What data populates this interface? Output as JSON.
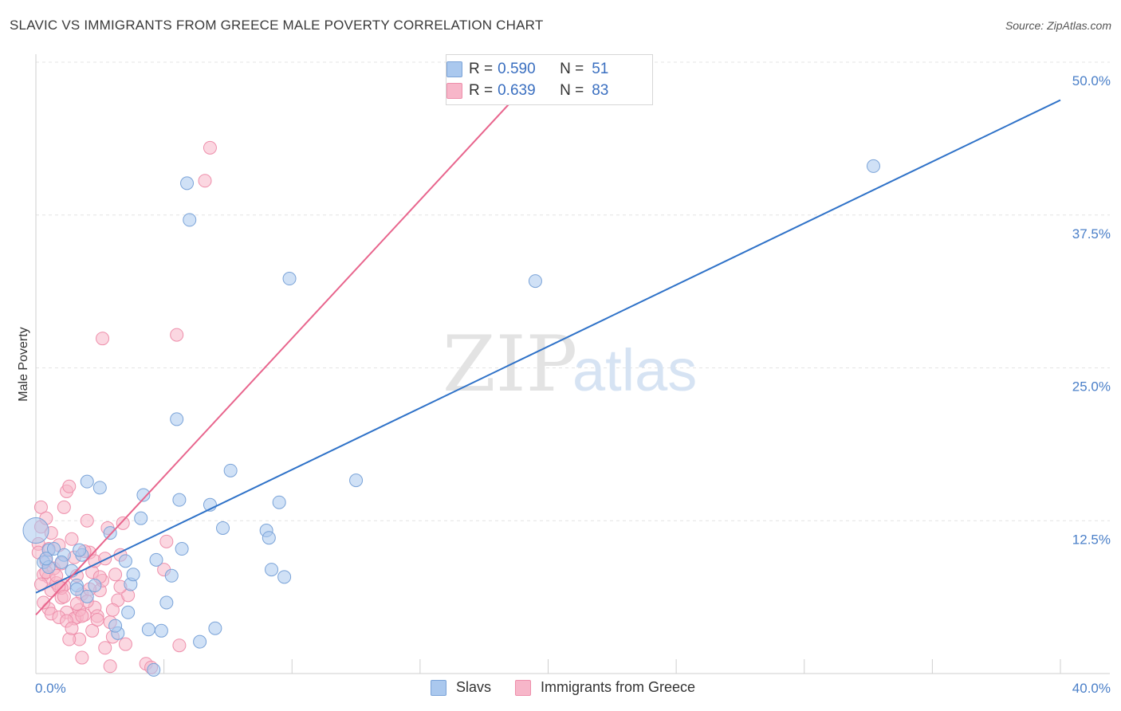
{
  "title": "SLAVIC VS IMMIGRANTS FROM GREECE MALE POVERTY CORRELATION CHART",
  "source": "Source: ZipAtlas.com",
  "watermark": {
    "zip": "ZIP",
    "atlas": "atlas"
  },
  "legend": {
    "rows": [
      {
        "r_label": "R =",
        "r_value": "0.590",
        "n_label": "N =",
        "n_value": "51"
      },
      {
        "r_label": "R =",
        "r_value": "0.639",
        "n_label": "N =",
        "n_value": "83"
      }
    ]
  },
  "bottom_legend": {
    "series1": "Slavs",
    "series2": "Immigrants from Greece"
  },
  "colors": {
    "slavs_fill": "#aac8ee",
    "slavs_stroke": "#7aa3d8",
    "slavs_line": "#2f72c8",
    "greece_fill": "#f7b6c9",
    "greece_stroke": "#ee8fab",
    "greece_line": "#e8658d",
    "axis_text": "#4a7fc8",
    "grid": "#e4e4e4"
  },
  "chart_data": {
    "type": "scatter",
    "xlabel": "",
    "ylabel": "Male Poverty",
    "xlim": [
      0,
      40
    ],
    "ylim": [
      0,
      50
    ],
    "x_tick_labels": [
      "0.0%",
      "40.0%"
    ],
    "y_ticks": [
      12.5,
      25.0,
      37.5,
      50.0
    ],
    "y_tick_labels": [
      "12.5%",
      "25.0%",
      "37.5%",
      "50.0%"
    ],
    "series": [
      {
        "name": "Slavs",
        "trend": {
          "x": [
            0,
            40
          ],
          "y": [
            6.6,
            46.9
          ]
        },
        "points": [
          [
            0.0,
            11.7
          ],
          [
            0.5,
            10.1
          ],
          [
            0.7,
            10.2
          ],
          [
            0.3,
            9.1
          ],
          [
            0.5,
            8.7
          ],
          [
            1.1,
            9.7
          ],
          [
            1.0,
            9.1
          ],
          [
            1.4,
            8.4
          ],
          [
            1.6,
            7.2
          ],
          [
            2.0,
            6.3
          ],
          [
            2.3,
            7.2
          ],
          [
            1.6,
            6.9
          ],
          [
            1.8,
            9.7
          ],
          [
            2.0,
            15.7
          ],
          [
            2.5,
            15.2
          ],
          [
            2.9,
            11.5
          ],
          [
            3.2,
            3.3
          ],
          [
            3.1,
            3.9
          ],
          [
            3.5,
            9.2
          ],
          [
            3.7,
            7.3
          ],
          [
            3.6,
            5.0
          ],
          [
            3.8,
            8.1
          ],
          [
            4.1,
            12.7
          ],
          [
            4.2,
            14.6
          ],
          [
            4.4,
            3.6
          ],
          [
            4.7,
            9.3
          ],
          [
            4.9,
            3.5
          ],
          [
            4.6,
            0.3
          ],
          [
            5.1,
            5.8
          ],
          [
            5.3,
            8.0
          ],
          [
            5.6,
            14.2
          ],
          [
            5.7,
            10.2
          ],
          [
            5.9,
            40.1
          ],
          [
            6.0,
            37.1
          ],
          [
            5.5,
            20.8
          ],
          [
            6.4,
            2.6
          ],
          [
            6.8,
            13.8
          ],
          [
            7.0,
            3.7
          ],
          [
            7.3,
            11.9
          ],
          [
            7.6,
            16.6
          ],
          [
            9.0,
            11.7
          ],
          [
            9.1,
            11.1
          ],
          [
            9.2,
            8.5
          ],
          [
            9.7,
            7.9
          ],
          [
            9.5,
            14.0
          ],
          [
            12.5,
            15.8
          ],
          [
            19.5,
            32.1
          ],
          [
            32.7,
            41.5
          ],
          [
            9.9,
            32.3
          ],
          [
            1.7,
            10.1
          ],
          [
            0.4,
            9.4
          ]
        ]
      },
      {
        "name": "Immigrants from Greece",
        "trend": {
          "x": [
            0,
            19.5
          ],
          "y": [
            4.8,
            48.9
          ]
        },
        "points": [
          [
            0.2,
            13.6
          ],
          [
            0.2,
            12.0
          ],
          [
            0.1,
            10.6
          ],
          [
            0.3,
            8.1
          ],
          [
            0.4,
            9.2
          ],
          [
            0.5,
            7.9
          ],
          [
            0.6,
            6.8
          ],
          [
            0.5,
            5.3
          ],
          [
            0.8,
            7.4
          ],
          [
            0.9,
            10.5
          ],
          [
            0.7,
            8.6
          ],
          [
            1.0,
            6.2
          ],
          [
            1.1,
            7.2
          ],
          [
            1.2,
            5.0
          ],
          [
            1.1,
            13.6
          ],
          [
            1.2,
            14.9
          ],
          [
            1.3,
            15.3
          ],
          [
            1.4,
            11.0
          ],
          [
            1.5,
            9.5
          ],
          [
            1.6,
            4.6
          ],
          [
            1.7,
            2.8
          ],
          [
            1.8,
            1.3
          ],
          [
            1.6,
            8.0
          ],
          [
            1.8,
            6.5
          ],
          [
            1.9,
            4.8
          ],
          [
            2.0,
            12.5
          ],
          [
            2.1,
            9.9
          ],
          [
            2.2,
            8.3
          ],
          [
            2.3,
            5.4
          ],
          [
            2.4,
            4.7
          ],
          [
            2.5,
            6.8
          ],
          [
            2.6,
            7.6
          ],
          [
            2.7,
            2.1
          ],
          [
            2.8,
            11.9
          ],
          [
            2.9,
            4.2
          ],
          [
            3.0,
            3.0
          ],
          [
            3.1,
            8.1
          ],
          [
            3.2,
            6.0
          ],
          [
            3.3,
            9.7
          ],
          [
            3.4,
            12.3
          ],
          [
            3.5,
            2.4
          ],
          [
            3.6,
            6.4
          ],
          [
            2.6,
            27.4
          ],
          [
            0.2,
            7.3
          ],
          [
            0.4,
            8.3
          ],
          [
            0.6,
            4.9
          ],
          [
            0.9,
            4.6
          ],
          [
            1.0,
            7.0
          ],
          [
            1.3,
            2.8
          ],
          [
            1.5,
            4.5
          ],
          [
            1.7,
            5.2
          ],
          [
            1.9,
            10.0
          ],
          [
            2.0,
            5.9
          ],
          [
            2.3,
            9.2
          ],
          [
            2.5,
            7.9
          ],
          [
            4.3,
            0.8
          ],
          [
            4.5,
            0.5
          ],
          [
            5.1,
            10.8
          ],
          [
            5.0,
            8.5
          ],
          [
            5.5,
            27.7
          ],
          [
            5.6,
            2.3
          ],
          [
            6.6,
            40.3
          ],
          [
            6.8,
            43.0
          ],
          [
            0.1,
            9.9
          ],
          [
            0.3,
            5.8
          ],
          [
            0.5,
            10.2
          ],
          [
            0.8,
            8.0
          ],
          [
            0.9,
            7.1
          ],
          [
            1.1,
            6.3
          ],
          [
            1.2,
            4.3
          ],
          [
            1.4,
            3.7
          ],
          [
            1.6,
            5.7
          ],
          [
            1.8,
            4.7
          ],
          [
            2.1,
            6.9
          ],
          [
            2.2,
            3.5
          ],
          [
            2.4,
            4.4
          ],
          [
            2.7,
            9.4
          ],
          [
            2.9,
            0.6
          ],
          [
            3.0,
            5.2
          ],
          [
            3.3,
            7.1
          ],
          [
            0.4,
            12.7
          ],
          [
            0.6,
            11.5
          ],
          [
            1.0,
            9.0
          ]
        ]
      }
    ]
  }
}
